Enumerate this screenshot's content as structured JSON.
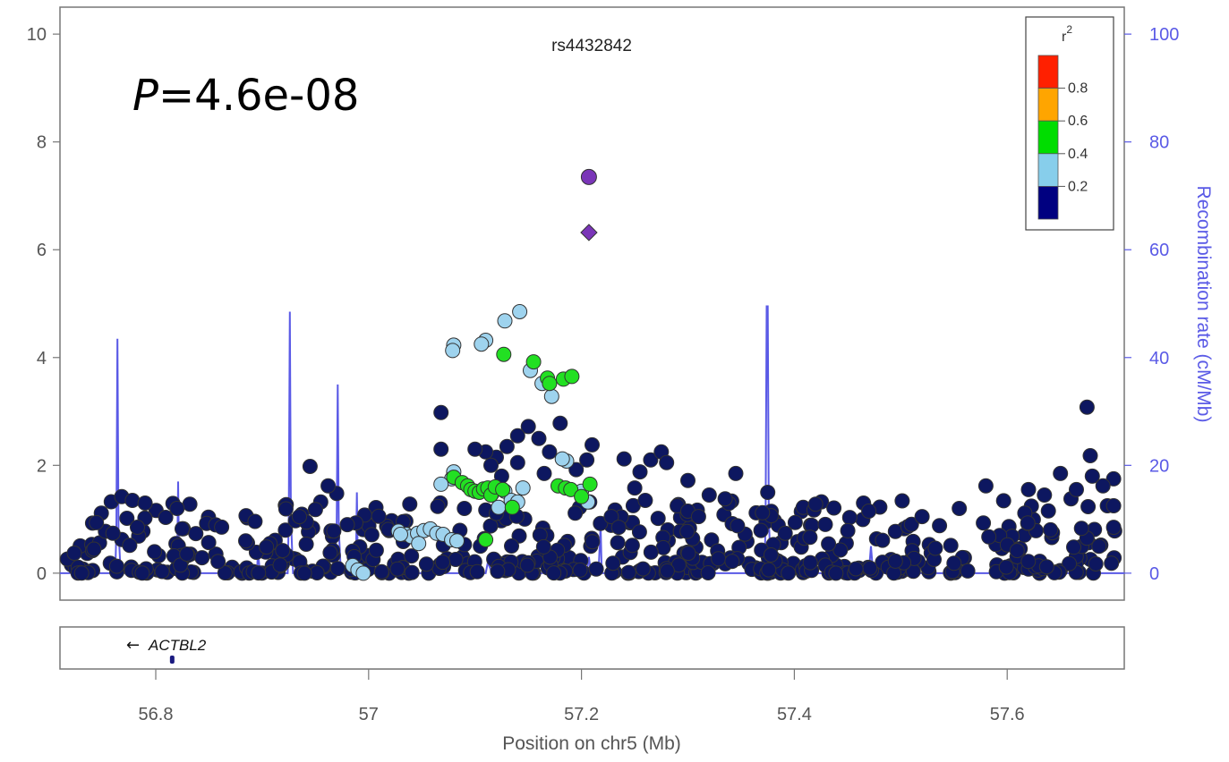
{
  "chart_data": {
    "type": "scatter",
    "title": "rs4432842",
    "annotation": {
      "prefix": "P",
      "text": "=4.6e-08"
    },
    "xlabel": "Position on chr5 (Mb)",
    "ylabel_right": "Recombination rate (cM/Mb)",
    "xlim": [
      56.71,
      57.71
    ],
    "ylim": [
      -0.5,
      10.5
    ],
    "y2lim": [
      -5,
      105
    ],
    "x_ticks": [
      56.8,
      57.0,
      57.2,
      57.4,
      57.6
    ],
    "x_tick_labels": [
      "56.8",
      "57",
      "57.2",
      "57.4",
      "57.6"
    ],
    "y_ticks": [
      0,
      2,
      4,
      6,
      8,
      10
    ],
    "y_tick_labels": [
      "0",
      "2",
      "4",
      "6",
      "8",
      "10"
    ],
    "y2_ticks": [
      0,
      20,
      40,
      60,
      80,
      100
    ],
    "y2_tick_labels": [
      "0",
      "20",
      "40",
      "60",
      "80",
      "100"
    ],
    "legend": {
      "title": "r",
      "title_sup": "2",
      "position": "top-right",
      "bins": [
        {
          "color": "#000080",
          "range": [
            0.0,
            0.2
          ]
        },
        {
          "color": "#87ceeb",
          "range": [
            0.2,
            0.4
          ]
        },
        {
          "color": "#00dd00",
          "range": [
            0.4,
            0.6
          ]
        },
        {
          "color": "#ffa500",
          "range": [
            0.6,
            0.8
          ]
        },
        {
          "color": "#ff2000",
          "range": [
            0.8,
            1.0
          ]
        }
      ],
      "labels": [
        "0.8",
        "0.6",
        "0.4",
        "0.2"
      ],
      "label_values": [
        0.8,
        0.6,
        0.4,
        0.2
      ]
    },
    "index_snps": [
      {
        "x": 57.207,
        "y": 7.35,
        "shape": "circle",
        "color": "#7a35b8"
      },
      {
        "x": 57.207,
        "y": 6.32,
        "shape": "diamond",
        "color": "#7a35b8"
      }
    ],
    "colors": {
      "low": "#0d1760",
      "light_blue": "#9ed3ee",
      "green": "#22e022",
      "purple": "#7a35b8",
      "recomb": "#5a5ae6"
    },
    "light_blue_points": [
      [
        57.142,
        4.85
      ],
      [
        57.128,
        4.68
      ],
      [
        57.11,
        4.32
      ],
      [
        57.106,
        4.25
      ],
      [
        57.08,
        4.23
      ],
      [
        57.079,
        4.13
      ],
      [
        57.152,
        3.76
      ],
      [
        57.163,
        3.52
      ],
      [
        57.172,
        3.28
      ],
      [
        57.186,
        2.08
      ],
      [
        57.182,
        2.12
      ],
      [
        57.08,
        1.88
      ],
      [
        57.078,
        1.75
      ],
      [
        57.068,
        1.65
      ],
      [
        57.145,
        1.58
      ],
      [
        57.128,
        1.52
      ],
      [
        57.116,
        1.48
      ],
      [
        57.134,
        1.35
      ],
      [
        57.2,
        1.52
      ],
      [
        57.206,
        1.32
      ],
      [
        57.122,
        1.22
      ],
      [
        57.14,
        1.32
      ],
      [
        57.028,
        0.78
      ],
      [
        57.035,
        0.72
      ],
      [
        57.04,
        0.68
      ],
      [
        57.046,
        0.74
      ],
      [
        57.052,
        0.79
      ],
      [
        57.058,
        0.82
      ],
      [
        57.064,
        0.74
      ],
      [
        57.07,
        0.72
      ],
      [
        57.078,
        0.62
      ],
      [
        57.083,
        0.6
      ],
      [
        57.047,
        0.55
      ],
      [
        56.985,
        0.14
      ],
      [
        56.99,
        0.06
      ],
      [
        56.995,
        0.0
      ],
      [
        57.03,
        0.72
      ]
    ],
    "green_points": [
      [
        57.127,
        4.06
      ],
      [
        57.155,
        3.92
      ],
      [
        57.168,
        3.62
      ],
      [
        57.17,
        3.52
      ],
      [
        57.183,
        3.6
      ],
      [
        57.191,
        3.65
      ],
      [
        57.08,
        1.78
      ],
      [
        57.088,
        1.68
      ],
      [
        57.093,
        1.62
      ],
      [
        57.096,
        1.55
      ],
      [
        57.1,
        1.52
      ],
      [
        57.104,
        1.5
      ],
      [
        57.108,
        1.56
      ],
      [
        57.112,
        1.58
      ],
      [
        57.115,
        1.45
      ],
      [
        57.119,
        1.6
      ],
      [
        57.126,
        1.55
      ],
      [
        57.178,
        1.62
      ],
      [
        57.185,
        1.58
      ],
      [
        57.19,
        1.55
      ],
      [
        57.208,
        1.65
      ],
      [
        57.2,
        1.42
      ],
      [
        57.135,
        1.22
      ],
      [
        57.11,
        0.62
      ]
    ],
    "recombination": [
      [
        56.71,
        0
      ],
      [
        56.762,
        0
      ],
      [
        56.763,
        8
      ],
      [
        56.764,
        43.5
      ],
      [
        56.765,
        8
      ],
      [
        56.767,
        0
      ],
      [
        56.82,
        0
      ],
      [
        56.821,
        17
      ],
      [
        56.822,
        0
      ],
      [
        56.895,
        0
      ],
      [
        56.896,
        4
      ],
      [
        56.898,
        0
      ],
      [
        56.924,
        0
      ],
      [
        56.925,
        10
      ],
      [
        56.926,
        48.5
      ],
      [
        56.927,
        10
      ],
      [
        56.929,
        0
      ],
      [
        56.968,
        0
      ],
      [
        56.97,
        8
      ],
      [
        56.971,
        35
      ],
      [
        56.972,
        8
      ],
      [
        56.974,
        0
      ],
      [
        56.988,
        0
      ],
      [
        56.989,
        15
      ],
      [
        56.99,
        0
      ],
      [
        57.05,
        0
      ],
      [
        57.052,
        2
      ],
      [
        57.056,
        0
      ],
      [
        57.11,
        0
      ],
      [
        57.112,
        2
      ],
      [
        57.116,
        0
      ],
      [
        57.205,
        0
      ],
      [
        57.207,
        3
      ],
      [
        57.209,
        0
      ],
      [
        57.216,
        0
      ],
      [
        57.218,
        9
      ],
      [
        57.219,
        0
      ],
      [
        57.372,
        0
      ],
      [
        57.373,
        10
      ],
      [
        57.374,
        49.5
      ],
      [
        57.375,
        49.5
      ],
      [
        57.376,
        10
      ],
      [
        57.378,
        0
      ],
      [
        57.47,
        0
      ],
      [
        57.472,
        5
      ],
      [
        57.474,
        0
      ],
      [
        57.71,
        0
      ]
    ],
    "gene": {
      "name": "ACTBL2",
      "strand": "-",
      "position": 56.815
    }
  }
}
